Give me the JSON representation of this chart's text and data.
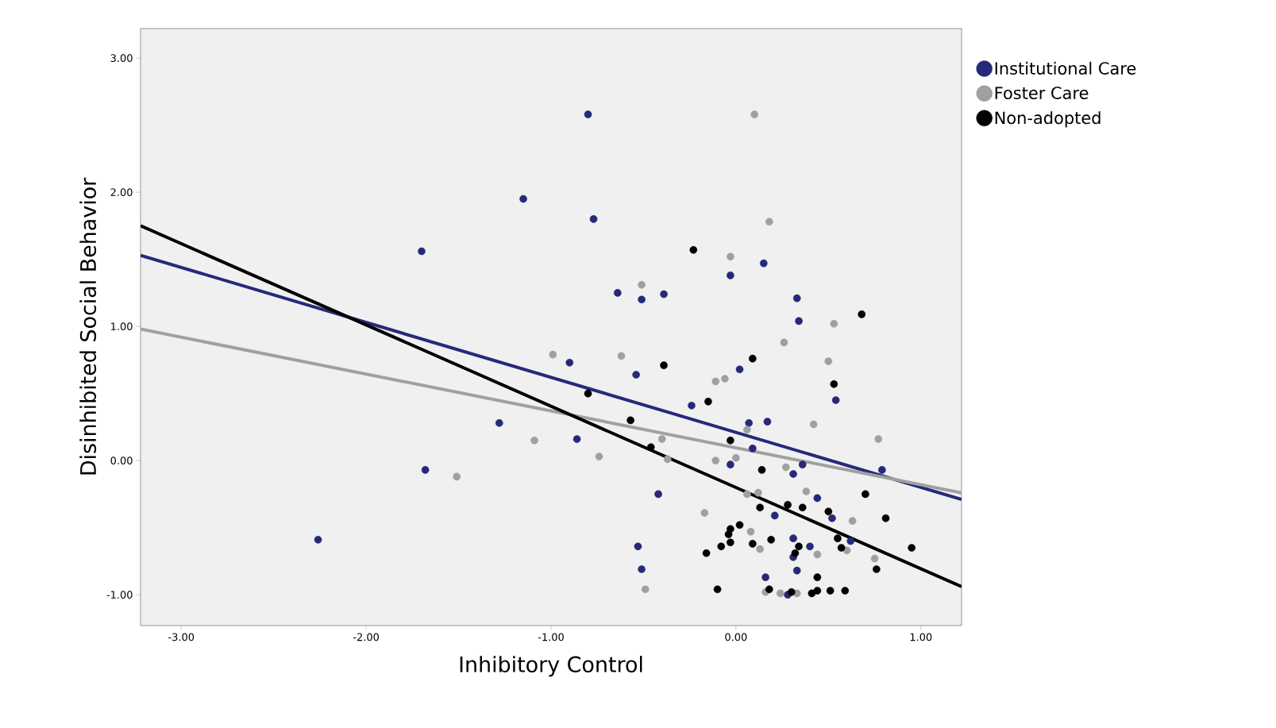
{
  "chart_data": {
    "type": "scatter",
    "xlabel": "Inhibitory Control",
    "ylabel": "Disinhibited Social Behavior",
    "xlim": [
      -3.22,
      1.22
    ],
    "ylim": [
      -1.23,
      3.22
    ],
    "xticks": [
      {
        "value": -3,
        "label": "-3.00"
      },
      {
        "value": -2,
        "label": "-2.00"
      },
      {
        "value": -1,
        "label": "-1.00"
      },
      {
        "value": 0,
        "label": "0.00"
      },
      {
        "value": 1,
        "label": "1.00"
      }
    ],
    "yticks": [
      {
        "value": -1,
        "label": "-1.00"
      },
      {
        "value": 0,
        "label": "0.00"
      },
      {
        "value": 1,
        "label": "1.00"
      },
      {
        "value": 2,
        "label": "2.00"
      },
      {
        "value": 3,
        "label": "3.00"
      }
    ],
    "grid": false,
    "legend": "top right",
    "marker": "circle",
    "series": [
      {
        "name": "Institutional Care",
        "color": "#26297a",
        "x": [
          -0.8,
          -1.15,
          -0.77,
          -1.7,
          0.15,
          -0.03,
          -0.64,
          -0.51,
          -0.39,
          0.33,
          0.34,
          -0.9,
          0.02,
          -0.54,
          0.54,
          -0.24,
          0.07,
          0.17,
          -1.28,
          -0.86,
          0.09,
          -0.03,
          0.31,
          0.36,
          0.79,
          -1.68,
          -0.42,
          0.44,
          0.21,
          0.52,
          0.62,
          -0.53,
          0.31,
          0.4,
          0.31,
          0.33,
          -0.51,
          0.16,
          0.28,
          -2.26
        ],
        "values": [
          2.58,
          1.95,
          1.8,
          1.56,
          1.47,
          1.38,
          1.25,
          1.2,
          1.24,
          1.21,
          1.04,
          0.73,
          0.68,
          0.64,
          0.45,
          0.41,
          0.28,
          0.29,
          0.28,
          0.16,
          0.09,
          -0.03,
          -0.1,
          -0.03,
          -0.07,
          -0.07,
          -0.25,
          -0.28,
          -0.41,
          -0.43,
          -0.6,
          -0.64,
          -0.58,
          -0.64,
          -0.72,
          -0.82,
          -0.81,
          -0.87,
          -1.0,
          -0.59
        ]
      },
      {
        "name": "Foster Care",
        "color": "#a0a0a0",
        "x": [
          0.1,
          0.18,
          -0.03,
          -0.51,
          0.53,
          0.26,
          -0.99,
          -0.62,
          0.5,
          -0.06,
          -0.11,
          0.42,
          0.77,
          -1.09,
          -0.4,
          0.06,
          -0.74,
          -0.37,
          0.0,
          -0.11,
          -1.51,
          0.27,
          0.38,
          0.06,
          0.12,
          0.63,
          -0.17,
          0.08,
          0.13,
          0.44,
          0.6,
          0.75,
          -0.49,
          0.16,
          0.24,
          0.33
        ],
        "values": [
          2.58,
          1.78,
          1.52,
          1.31,
          1.02,
          0.88,
          0.79,
          0.78,
          0.74,
          0.61,
          0.59,
          0.27,
          0.16,
          0.15,
          0.16,
          0.23,
          0.03,
          0.01,
          0.02,
          0.0,
          -0.12,
          -0.05,
          -0.23,
          -0.25,
          -0.24,
          -0.45,
          -0.39,
          -0.53,
          -0.66,
          -0.7,
          -0.67,
          -0.73,
          -0.96,
          -0.98,
          -0.99,
          -0.99
        ]
      },
      {
        "name": "Non-adopted",
        "color": "#000000",
        "x": [
          -0.23,
          0.68,
          -0.39,
          0.09,
          0.53,
          -0.15,
          -0.8,
          -0.57,
          -0.03,
          -0.46,
          0.14,
          0.7,
          0.28,
          0.36,
          0.13,
          0.5,
          0.81,
          0.02,
          -0.03,
          -0.04,
          0.19,
          0.55,
          0.57,
          -0.03,
          -0.08,
          0.09,
          0.34,
          0.32,
          -0.16,
          0.95,
          0.76,
          0.44,
          -0.1,
          0.18,
          0.3,
          0.41,
          0.44,
          0.51,
          0.59
        ],
        "values": [
          1.57,
          1.09,
          0.71,
          0.76,
          0.57,
          0.44,
          0.5,
          0.3,
          0.15,
          0.1,
          -0.07,
          -0.25,
          -0.33,
          -0.35,
          -0.35,
          -0.38,
          -0.43,
          -0.48,
          -0.51,
          -0.55,
          -0.59,
          -0.58,
          -0.65,
          -0.61,
          -0.64,
          -0.62,
          -0.64,
          -0.69,
          -0.69,
          -0.65,
          -0.81,
          -0.87,
          -0.96,
          -0.96,
          -0.98,
          -0.99,
          -0.97,
          -0.97,
          -0.97
        ]
      },
      {
        "type": "line",
        "marker": "none",
        "color": "#26297a",
        "x": [
          -3.22,
          1.22
        ],
        "values": [
          1.53,
          -0.29
        ]
      },
      {
        "type": "line",
        "marker": "none",
        "color": "#a0a0a0",
        "x": [
          -3.22,
          1.22
        ],
        "values": [
          0.98,
          -0.24
        ]
      },
      {
        "type": "line",
        "marker": "none",
        "color": "#000000",
        "x": [
          -3.22,
          1.22
        ],
        "values": [
          1.75,
          -0.94
        ]
      }
    ]
  }
}
